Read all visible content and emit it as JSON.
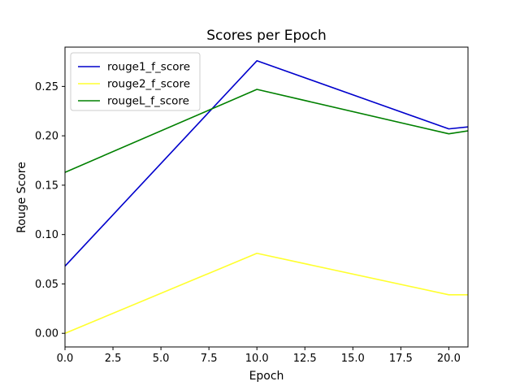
{
  "chart_data": {
    "type": "line",
    "title": "Scores per Epoch",
    "xlabel": "Epoch",
    "ylabel": "Rouge Score",
    "xlim": [
      0,
      21
    ],
    "ylim": [
      -0.0138,
      0.2898
    ],
    "xticks": [
      0,
      2.5,
      5,
      7.5,
      10,
      12.5,
      15,
      17.5,
      20
    ],
    "xtick_labels": [
      "0.0",
      "2.5",
      "5.0",
      "7.5",
      "10.0",
      "12.5",
      "15.0",
      "17.5",
      "20.0"
    ],
    "yticks": [
      0,
      0.05,
      0.1,
      0.15,
      0.2,
      0.25
    ],
    "ytick_labels": [
      "0.00",
      "0.05",
      "0.10",
      "0.15",
      "0.20",
      "0.25"
    ],
    "grid": false,
    "legend_position": "top-left",
    "series": [
      {
        "name": "rouge1_f_score",
        "color": "#0000cc",
        "x": [
          0,
          10,
          20,
          21
        ],
        "y": [
          0.068,
          0.276,
          0.207,
          0.209
        ]
      },
      {
        "name": "rouge2_f_score",
        "color": "#ffff2e",
        "x": [
          0,
          10,
          20,
          21
        ],
        "y": [
          0.0,
          0.081,
          0.039,
          0.039
        ]
      },
      {
        "name": "rougeL_f_score",
        "color": "#008000",
        "x": [
          0,
          10,
          20,
          21
        ],
        "y": [
          0.163,
          0.247,
          0.202,
          0.205
        ]
      }
    ]
  }
}
